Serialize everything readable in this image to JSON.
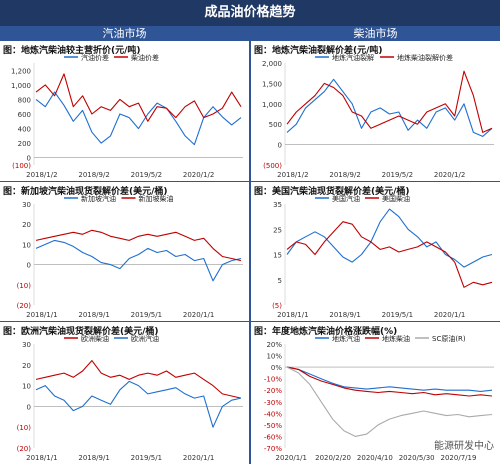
{
  "title": "成品油价格趋势",
  "columns": {
    "left": "汽油市场",
    "right": "柴油市场"
  },
  "watermark": "能源研发中心",
  "colors": {
    "header": "#1f3864",
    "subheader": "#2f5597",
    "blue": "#1f6fd0",
    "red": "#c00000",
    "gray": "#aaaaaa"
  },
  "charts": [
    {
      "title": "图：地炼汽柴油较主营折价(元/吨)",
      "chart_data": {
        "type": "line",
        "ylim": [
          -100,
          1300
        ],
        "yticks": [
          1200,
          1000,
          800,
          600,
          400,
          200,
          0,
          -100
        ],
        "ytick_labels": [
          "1,200",
          "1,000",
          "800",
          "600",
          "400",
          "200",
          "0",
          "(100)"
        ],
        "xticks": [
          "2018/1/2",
          "2018/9/2",
          "2019/5/2",
          "2020/1/2"
        ],
        "legend": "top",
        "series": [
          {
            "name": "汽油价差",
            "color": "#1f6fd0",
            "values": [
              800,
              700,
              900,
              720,
              500,
              650,
              350,
              200,
              300,
              600,
              550,
              400,
              600,
              750,
              680,
              500,
              300,
              180,
              550,
              700,
              560,
              450,
              550
            ]
          },
          {
            "name": "柴油价差",
            "color": "#c00000",
            "values": [
              900,
              1000,
              850,
              1150,
              700,
              850,
              600,
              700,
              650,
              800,
              700,
              750,
              500,
              700,
              680,
              550,
              700,
              780,
              550,
              600,
              680,
              900,
              700
            ]
          }
        ]
      }
    },
    {
      "title": "图：地炼汽柴油裂解价差(元/吨)",
      "chart_data": {
        "type": "line",
        "ylim": [
          -500,
          2000
        ],
        "yticks": [
          2000,
          1500,
          1000,
          500,
          0,
          -500
        ],
        "ytick_labels": [
          "2,000",
          "1,500",
          "1,000",
          "500",
          "0",
          "(500)"
        ],
        "xticks": [
          "2018/1/2",
          "2018/9/2",
          "2019/5/2",
          "2020/1/2"
        ],
        "legend": "top",
        "series": [
          {
            "name": "地炼汽油裂解",
            "color": "#1f6fd0",
            "values": [
              300,
              500,
              900,
              1100,
              1300,
              1600,
              1300,
              1000,
              400,
              800,
              900,
              750,
              800,
              350,
              600,
              400,
              800,
              900,
              600,
              1000,
              300,
              200,
              400
            ]
          },
          {
            "name": "地炼柴油裂解价差",
            "color": "#c00000",
            "values": [
              500,
              800,
              1000,
              1200,
              1500,
              1400,
              1200,
              800,
              700,
              400,
              500,
              600,
              700,
              600,
              500,
              800,
              900,
              1000,
              700,
              1800,
              1200,
              300,
              400
            ]
          }
        ]
      }
    },
    {
      "title": "图：新加坡汽柴油现货裂解价差(美元/桶)",
      "chart_data": {
        "type": "line",
        "ylim": [
          -20,
          30
        ],
        "yticks": [
          30,
          20,
          10,
          0,
          -10,
          -20
        ],
        "ytick_labels": [
          "30",
          "20",
          "10",
          "0",
          "(10)",
          "(20)"
        ],
        "xticks": [
          "2018/1/1",
          "2018/9/1",
          "2019/5/1",
          "2020/1/1"
        ],
        "legend": "top",
        "series": [
          {
            "name": "新加坡汽油",
            "color": "#1f6fd0",
            "values": [
              8,
              10,
              12,
              11,
              9,
              6,
              4,
              1,
              0,
              -2,
              3,
              5,
              8,
              6,
              7,
              4,
              5,
              2,
              3,
              -8,
              0,
              2,
              3
            ]
          },
          {
            "name": "新加坡柴油",
            "color": "#c00000",
            "values": [
              12,
              13,
              14,
              15,
              16,
              15,
              17,
              16,
              14,
              13,
              12,
              14,
              15,
              14,
              15,
              16,
              14,
              12,
              13,
              8,
              4,
              3,
              2
            ]
          }
        ]
      }
    },
    {
      "title": "图：美国汽柴油现货裂解价差(美元/桶)",
      "chart_data": {
        "type": "line",
        "ylim": [
          -5,
          35
        ],
        "yticks": [
          35,
          25,
          15,
          5,
          -5
        ],
        "ytick_labels": [
          "35",
          "25",
          "15",
          "5",
          "(5)"
        ],
        "xticks": [
          "2018/1/1",
          "2018/9/1",
          "2019/5/1",
          "2020/1/1"
        ],
        "legend": "top",
        "series": [
          {
            "name": "美国汽油",
            "color": "#1f6fd0",
            "values": [
              15,
              20,
              22,
              24,
              22,
              18,
              14,
              12,
              15,
              20,
              28,
              33,
              30,
              25,
              22,
              18,
              20,
              15,
              13,
              10,
              12,
              14,
              15
            ]
          },
          {
            "name": "美国柴油",
            "color": "#c00000",
            "values": [
              17,
              20,
              19,
              15,
              20,
              24,
              28,
              27,
              22,
              20,
              17,
              18,
              16,
              17,
              18,
              20,
              18,
              16,
              12,
              2,
              4,
              3,
              4
            ]
          }
        ]
      }
    },
    {
      "title": "图：欧洲汽柴油现货裂解价差(美元/桶)",
      "chart_data": {
        "type": "line",
        "ylim": [
          -20,
          30
        ],
        "yticks": [
          30,
          20,
          10,
          0,
          -10,
          -20
        ],
        "ytick_labels": [
          "30",
          "20",
          "10",
          "0",
          "(10)",
          "(20)"
        ],
        "xticks": [
          "2018/1/1",
          "2018/9/1",
          "2019/5/1",
          "2020/1/1"
        ],
        "legend": "top",
        "series": [
          {
            "name": "欧洲柴油",
            "color": "#c00000",
            "values": [
              13,
              14,
              15,
              16,
              14,
              17,
              22,
              16,
              14,
              15,
              13,
              15,
              16,
              15,
              17,
              14,
              15,
              16,
              13,
              10,
              6,
              5,
              4
            ]
          },
          {
            "name": "欧洲汽油",
            "color": "#1f6fd0",
            "values": [
              8,
              10,
              5,
              3,
              -2,
              0,
              5,
              3,
              1,
              8,
              12,
              10,
              6,
              7,
              8,
              9,
              6,
              4,
              5,
              -10,
              0,
              3,
              4
            ]
          }
        ]
      }
    },
    {
      "title": "图：年度地炼汽柴油价格涨跌幅(%)",
      "chart_data": {
        "type": "line",
        "ylim": [
          -70,
          20
        ],
        "yticks": [
          20,
          10,
          0,
          -10,
          -20,
          -30,
          -40,
          -50,
          -60,
          -70
        ],
        "ytick_labels": [
          "20%",
          "10%",
          "0%",
          "-10%",
          "-20%",
          "-30%",
          "-40%",
          "-50%",
          "-60%",
          "-70%"
        ],
        "xticks": [
          "2020/1/1",
          "2020/2/20",
          "2020/4/10",
          "2020/5/30",
          "2020/7/19"
        ],
        "legend": "top",
        "series": [
          {
            "name": "地炼汽油",
            "color": "#1f6fd0",
            "values": [
              0,
              -2,
              -6,
              -10,
              -14,
              -17,
              -18,
              -19,
              -18,
              -17,
              -18,
              -19,
              -20,
              -19,
              -20,
              -20,
              -20,
              -21,
              -20
            ]
          },
          {
            "name": "地炼柴油",
            "color": "#c00000",
            "values": [
              0,
              -2,
              -8,
              -12,
              -15,
              -18,
              -20,
              -21,
              -22,
              -21,
              -22,
              -23,
              -22,
              -24,
              -23,
              -24,
              -25,
              -24,
              -25
            ]
          },
          {
            "name": "SC原油(R)",
            "color": "#aaaaaa",
            "values": [
              0,
              -5,
              -15,
              -30,
              -45,
              -55,
              -60,
              -58,
              -50,
              -45,
              -42,
              -40,
              -38,
              -40,
              -42,
              -41,
              -43,
              -42,
              -41
            ]
          }
        ]
      }
    }
  ]
}
